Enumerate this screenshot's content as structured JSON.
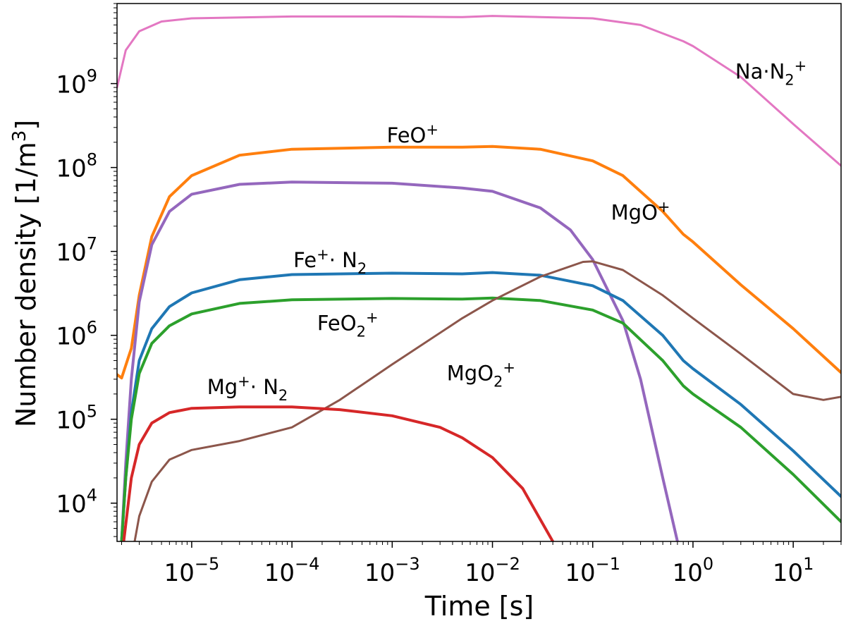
{
  "chart_data": {
    "type": "line",
    "title": "",
    "xlabel": "Time [s]",
    "ylabel": "Number density [1/m³]",
    "xscale": "log",
    "yscale": "log",
    "xlim": [
      1.8e-06,
      30
    ],
    "ylim": [
      3500,
      9000000000.0
    ],
    "grid": false,
    "legend": "none",
    "x_ticks": [
      {
        "value": 1e-05,
        "base": "10",
        "exp": "−5"
      },
      {
        "value": 0.0001,
        "base": "10",
        "exp": "−4"
      },
      {
        "value": 0.001,
        "base": "10",
        "exp": "−3"
      },
      {
        "value": 0.01,
        "base": "10",
        "exp": "−2"
      },
      {
        "value": 0.1,
        "base": "10",
        "exp": "−1"
      },
      {
        "value": 1,
        "base": "10",
        "exp": "0"
      },
      {
        "value": 10,
        "base": "10",
        "exp": "1"
      }
    ],
    "y_ticks": [
      {
        "value": 10000.0,
        "base": "10",
        "exp": "4"
      },
      {
        "value": 100000.0,
        "base": "10",
        "exp": "5"
      },
      {
        "value": 1000000.0,
        "base": "10",
        "exp": "6"
      },
      {
        "value": 10000000.0,
        "base": "10",
        "exp": "7"
      },
      {
        "value": 100000000.0,
        "base": "10",
        "exp": "8"
      },
      {
        "value": 1000000000.0,
        "base": "10",
        "exp": "9"
      }
    ],
    "series": [
      {
        "color": "#e377c2",
        "width": 3,
        "points": [
          [
            1.8e-06,
            900000000.0
          ],
          [
            2.2e-06,
            2500000000.0
          ],
          [
            3e-06,
            4200000000.0
          ],
          [
            5e-06,
            5500000000.0
          ],
          [
            1e-05,
            6000000000.0
          ],
          [
            0.0001,
            6300000000.0
          ],
          [
            0.001,
            6300000000.0
          ],
          [
            0.005,
            6200000000.0
          ],
          [
            0.01,
            6400000000.0
          ],
          [
            0.1,
            6000000000.0
          ],
          [
            0.3,
            5000000000.0
          ],
          [
            0.8,
            3200000000.0
          ],
          [
            1.0,
            2800000000.0
          ],
          [
            3,
            1200000000.0
          ],
          [
            10,
            330000000.0
          ],
          [
            30,
            105000000.0
          ]
        ]
      },
      {
        "color": "#ff7f0e",
        "width": 4,
        "points": [
          [
            1.8e-06,
            340000.0
          ],
          [
            2e-06,
            310000.0
          ],
          [
            2.5e-06,
            700000.0
          ],
          [
            3e-06,
            3000000.0
          ],
          [
            4e-06,
            15000000.0
          ],
          [
            6e-06,
            45000000.0
          ],
          [
            1e-05,
            80000000.0
          ],
          [
            3e-05,
            140000000.0
          ],
          [
            0.0001,
            165000000.0
          ],
          [
            0.001,
            175000000.0
          ],
          [
            0.005,
            175000000.0
          ],
          [
            0.01,
            178000000.0
          ],
          [
            0.03,
            165000000.0
          ],
          [
            0.1,
            120000000.0
          ],
          [
            0.2,
            80000000.0
          ],
          [
            0.5,
            30000000.0
          ],
          [
            0.8,
            16000000.0
          ],
          [
            1,
            13000000.0
          ],
          [
            3,
            4000000.0
          ],
          [
            10,
            1200000.0
          ],
          [
            30,
            360000.0
          ]
        ]
      },
      {
        "color": "#9467bd",
        "width": 4,
        "points": [
          [
            2e-06,
            3500
          ],
          [
            2.2e-06,
            30000.0
          ],
          [
            2.5e-06,
            300000.0
          ],
          [
            3e-06,
            2500000.0
          ],
          [
            4e-06,
            12000000.0
          ],
          [
            6e-06,
            30000000.0
          ],
          [
            1e-05,
            48000000.0
          ],
          [
            3e-05,
            63000000.0
          ],
          [
            0.0001,
            67000000.0
          ],
          [
            0.001,
            65000000.0
          ],
          [
            0.005,
            57000000.0
          ],
          [
            0.01,
            52000000.0
          ],
          [
            0.03,
            33000000.0
          ],
          [
            0.06,
            18000000.0
          ],
          [
            0.1,
            8000000.0
          ],
          [
            0.2,
            1500000.0
          ],
          [
            0.3,
            300000.0
          ],
          [
            0.5,
            20000.0
          ],
          [
            0.7,
            3500
          ]
        ]
      },
      {
        "color": "#1f77b4",
        "width": 4,
        "points": [
          [
            2e-06,
            3500
          ],
          [
            2.2e-06,
            20000.0
          ],
          [
            2.5e-06,
            120000.0
          ],
          [
            3e-06,
            500000.0
          ],
          [
            4e-06,
            1200000.0
          ],
          [
            6e-06,
            2200000.0
          ],
          [
            1e-05,
            3200000.0
          ],
          [
            3e-05,
            4600000.0
          ],
          [
            0.0001,
            5300000.0
          ],
          [
            0.001,
            5500000.0
          ],
          [
            0.005,
            5400000.0
          ],
          [
            0.01,
            5600000.0
          ],
          [
            0.03,
            5200000.0
          ],
          [
            0.1,
            3900000.0
          ],
          [
            0.2,
            2600000.0
          ],
          [
            0.5,
            1000000.0
          ],
          [
            0.8,
            500000.0
          ],
          [
            1,
            400000.0
          ],
          [
            3,
            150000.0
          ],
          [
            10,
            42000.0
          ],
          [
            30,
            12000.0
          ]
        ]
      },
      {
        "color": "#2ca02c",
        "width": 4,
        "points": [
          [
            2e-06,
            3500
          ],
          [
            2.2e-06,
            20000.0
          ],
          [
            2.5e-06,
            100000.0
          ],
          [
            3e-06,
            350000.0
          ],
          [
            4e-06,
            800000.0
          ],
          [
            6e-06,
            1300000.0
          ],
          [
            1e-05,
            1800000.0
          ],
          [
            3e-05,
            2400000.0
          ],
          [
            0.0001,
            2650000.0
          ],
          [
            0.001,
            2750000.0
          ],
          [
            0.005,
            2700000.0
          ],
          [
            0.01,
            2780000.0
          ],
          [
            0.03,
            2600000.0
          ],
          [
            0.1,
            2000000.0
          ],
          [
            0.2,
            1400000.0
          ],
          [
            0.5,
            500000.0
          ],
          [
            0.8,
            250000.0
          ],
          [
            1,
            200000.0
          ],
          [
            3,
            80000.0
          ],
          [
            10,
            22000.0
          ],
          [
            30,
            6000.0
          ]
        ]
      },
      {
        "color": "#8c564b",
        "width": 3,
        "points": [
          [
            2.7e-06,
            3500
          ],
          [
            3e-06,
            7000.0
          ],
          [
            4e-06,
            18000.0
          ],
          [
            6e-06,
            33000.0
          ],
          [
            1e-05,
            43000.0
          ],
          [
            3e-05,
            55000.0
          ],
          [
            0.0001,
            80000.0
          ],
          [
            0.0003,
            170000.0
          ],
          [
            0.001,
            450000.0
          ],
          [
            0.005,
            1600000.0
          ],
          [
            0.01,
            2600000.0
          ],
          [
            0.03,
            5000000.0
          ],
          [
            0.08,
            7500000.0
          ],
          [
            0.1,
            7600000.0
          ],
          [
            0.2,
            6000000.0
          ],
          [
            0.5,
            3000000.0
          ],
          [
            1,
            1600000.0
          ],
          [
            3,
            600000.0
          ],
          [
            10,
            200000.0
          ],
          [
            20,
            170000.0
          ],
          [
            30,
            185000.0
          ]
        ]
      },
      {
        "color": "#d62728",
        "width": 4,
        "points": [
          [
            2.1e-06,
            3500
          ],
          [
            2.5e-06,
            20000.0
          ],
          [
            3e-06,
            50000.0
          ],
          [
            4e-06,
            90000.0
          ],
          [
            6e-06,
            120000.0
          ],
          [
            1e-05,
            135000.0
          ],
          [
            3e-05,
            140000.0
          ],
          [
            0.0001,
            140000.0
          ],
          [
            0.0003,
            130000.0
          ],
          [
            0.001,
            110000.0
          ],
          [
            0.003,
            80000.0
          ],
          [
            0.005,
            60000.0
          ],
          [
            0.01,
            35000.0
          ],
          [
            0.02,
            15000.0
          ],
          [
            0.04,
            3500
          ]
        ]
      }
    ],
    "annotations": [
      {
        "pre": "Na·N",
        "sub": "2",
        "sup": "+",
        "x": 6,
        "y": 1150000000.0
      },
      {
        "pre": "FeO",
        "sub": "",
        "sup": "+",
        "x": 0.0016,
        "y": 200000000.0
      },
      {
        "pre": "MgO",
        "sub": "",
        "sup": "+",
        "x": 0.3,
        "y": 24000000.0
      },
      {
        "pre": "Fe",
        "sup_mid": "+",
        "mid": "· N",
        "sub": "2",
        "x": 0.00024,
        "y": 6500000.0
      },
      {
        "pre": "FeO",
        "sub": "2",
        "sup": "+",
        "x": 0.00036,
        "y": 1150000.0
      },
      {
        "pre": "MgO",
        "sub": "2",
        "sup": "+",
        "x": 0.0077,
        "y": 290000.0
      },
      {
        "pre": "Mg",
        "sup_mid": "+",
        "mid": "· N",
        "sub": "2",
        "x": 3.6e-05,
        "y": 200000.0
      }
    ]
  }
}
